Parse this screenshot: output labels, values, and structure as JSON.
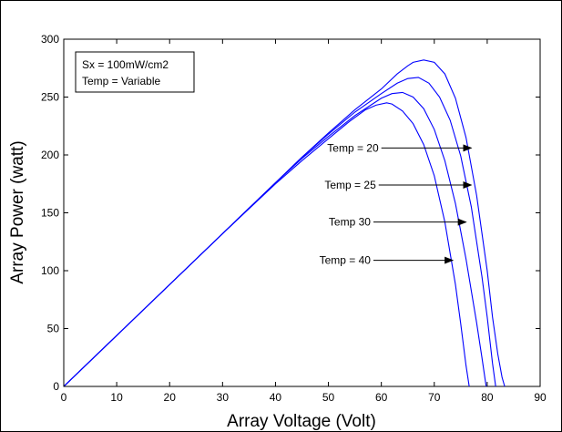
{
  "chart_data": {
    "type": "line",
    "title": "",
    "xlabel": "Array Voltage (Volt)",
    "ylabel": "Array Power (watt)",
    "xlim": [
      0,
      90
    ],
    "ylim": [
      0,
      300
    ],
    "xticks": [
      0,
      10,
      20,
      30,
      40,
      50,
      60,
      70,
      80,
      90
    ],
    "yticks": [
      0,
      50,
      100,
      150,
      200,
      250,
      300
    ],
    "grid": false,
    "line_color": "#0000ff",
    "legend_box": {
      "line1": "Sx = 100mW/cm2",
      "line2": "Temp = Variable"
    },
    "series": [
      {
        "x": [
          0,
          10,
          20,
          30,
          40,
          45,
          50,
          55,
          60,
          63,
          65,
          66,
          68,
          70,
          72,
          74,
          76,
          78,
          80,
          81,
          82,
          82.8,
          83.3
        ],
        "y": [
          0,
          44,
          88,
          132,
          176,
          198,
          219,
          239,
          257,
          270,
          277,
          280,
          282,
          280,
          270,
          249,
          215,
          165,
          100,
          60,
          28,
          8,
          0
        ]
      },
      {
        "x": [
          0,
          10,
          20,
          30,
          40,
          45,
          50,
          55,
          60,
          63,
          65,
          67,
          69,
          71,
          73,
          75,
          77,
          79,
          80,
          81,
          81.6
        ],
        "y": [
          0,
          44,
          88,
          132,
          176,
          198,
          218,
          237,
          253,
          262,
          266,
          267,
          262,
          250,
          230,
          199,
          155,
          95,
          60,
          20,
          0
        ]
      },
      {
        "x": [
          0,
          10,
          20,
          30,
          40,
          45,
          50,
          55,
          58,
          60,
          62,
          64,
          66,
          68,
          70,
          72,
          74,
          76,
          78,
          79,
          79.8
        ],
        "y": [
          0,
          44,
          88,
          132,
          176,
          197,
          216,
          234,
          243,
          249,
          253,
          254,
          250,
          240,
          222,
          195,
          158,
          110,
          55,
          25,
          0
        ]
      },
      {
        "x": [
          0,
          10,
          20,
          30,
          40,
          45,
          50,
          54,
          57,
          59,
          61,
          62,
          64,
          66,
          68,
          70,
          72,
          74,
          75,
          76,
          76.6
        ],
        "y": [
          0,
          44,
          88,
          132,
          175,
          195,
          214,
          229,
          239,
          243,
          245,
          244,
          238,
          227,
          209,
          182,
          142,
          88,
          54,
          18,
          0
        ]
      }
    ],
    "annotations": [
      {
        "text": "Temp = 20",
        "arrow_from": [
          60,
          206
        ],
        "arrow_to": [
          77,
          206
        ]
      },
      {
        "text": "Temp = 25",
        "arrow_from": [
          59.5,
          174
        ],
        "arrow_to": [
          77,
          174
        ]
      },
      {
        "text": "Temp 30",
        "arrow_from": [
          58.5,
          142
        ],
        "arrow_to": [
          76,
          142
        ]
      },
      {
        "text": "Temp = 40",
        "arrow_from": [
          58.5,
          109
        ],
        "arrow_to": [
          73.5,
          109
        ]
      }
    ]
  }
}
